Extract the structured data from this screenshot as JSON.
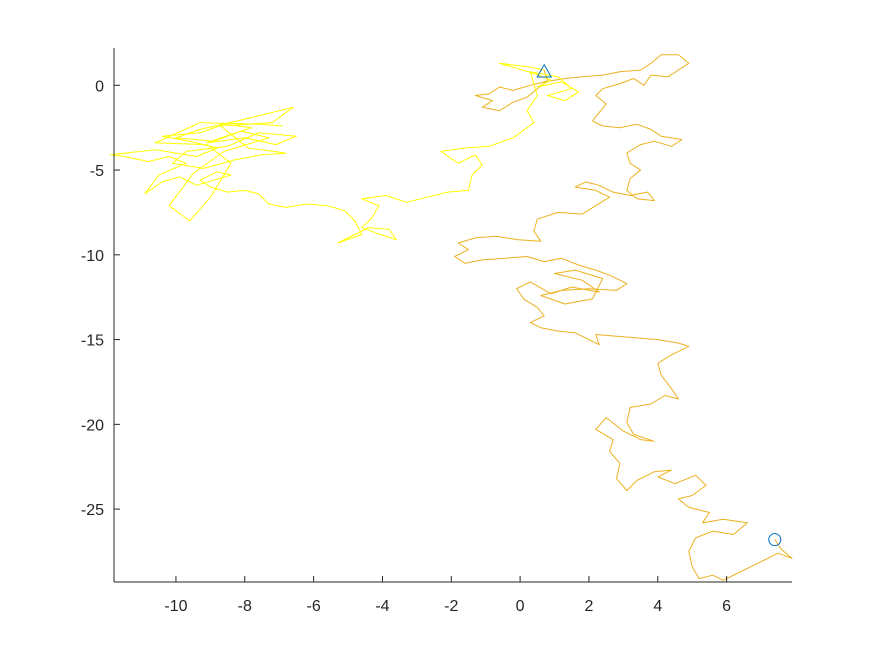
{
  "chart_data": {
    "type": "line",
    "title": "",
    "xlabel": "",
    "ylabel": "",
    "xlim": [
      -11.8,
      7.9
    ],
    "ylim": [
      -29.3,
      2.2
    ],
    "xticks": [
      -10,
      -8,
      -6,
      -4,
      -2,
      0,
      2,
      4,
      6
    ],
    "yticks": [
      -25,
      -20,
      -15,
      -10,
      -5,
      0
    ],
    "xtick_labels": [
      "-10",
      "-8",
      "-6",
      "-4",
      "-2",
      "0",
      "2",
      "4",
      "6"
    ],
    "ytick_labels": [
      "-25",
      "-20",
      "-15",
      "-10",
      "-5",
      "0"
    ],
    "grid": false,
    "box": false,
    "series": [
      {
        "color": "#EDB120",
        "values": [
          [
            7.4,
            -26.8
          ],
          [
            7.6,
            -27.4
          ],
          [
            7.9,
            -27.9
          ],
          [
            7.5,
            -27.6
          ],
          [
            6.9,
            -28.2
          ],
          [
            6.3,
            -28.8
          ],
          [
            5.9,
            -29.2
          ],
          [
            5.6,
            -28.9
          ],
          [
            5.2,
            -29.1
          ],
          [
            5.0,
            -28.4
          ],
          [
            4.9,
            -27.5
          ],
          [
            5.1,
            -26.7
          ],
          [
            5.6,
            -26.3
          ],
          [
            6.2,
            -26.5
          ],
          [
            6.6,
            -25.8
          ],
          [
            5.9,
            -25.6
          ],
          [
            5.3,
            -25.8
          ],
          [
            5.5,
            -25.2
          ],
          [
            4.9,
            -24.9
          ],
          [
            4.6,
            -24.4
          ],
          [
            5.0,
            -24.2
          ],
          [
            5.4,
            -23.6
          ],
          [
            5.1,
            -23.0
          ],
          [
            4.5,
            -23.5
          ],
          [
            4.0,
            -23.1
          ],
          [
            4.4,
            -22.7
          ],
          [
            3.9,
            -22.8
          ],
          [
            3.4,
            -23.3
          ],
          [
            3.1,
            -23.9
          ],
          [
            2.8,
            -23.2
          ],
          [
            2.9,
            -22.3
          ],
          [
            2.6,
            -21.6
          ],
          [
            2.7,
            -20.9
          ],
          [
            2.2,
            -20.3
          ],
          [
            2.5,
            -19.6
          ],
          [
            3.0,
            -20.4
          ],
          [
            3.5,
            -20.9
          ],
          [
            3.9,
            -21.0
          ],
          [
            3.3,
            -20.6
          ],
          [
            3.1,
            -19.9
          ],
          [
            3.2,
            -19.0
          ],
          [
            3.8,
            -18.8
          ],
          [
            4.2,
            -18.3
          ],
          [
            4.6,
            -18.5
          ],
          [
            4.4,
            -17.9
          ],
          [
            4.1,
            -17.1
          ],
          [
            4.0,
            -16.4
          ],
          [
            4.4,
            -15.9
          ],
          [
            4.9,
            -15.4
          ],
          [
            4.6,
            -15.2
          ],
          [
            4.0,
            -15.0
          ],
          [
            3.4,
            -14.9
          ],
          [
            2.8,
            -14.8
          ],
          [
            2.2,
            -14.7
          ],
          [
            2.3,
            -15.3
          ],
          [
            1.9,
            -14.9
          ],
          [
            1.6,
            -14.6
          ],
          [
            1.1,
            -14.5
          ],
          [
            0.6,
            -14.3
          ],
          [
            0.3,
            -14.0
          ],
          [
            0.7,
            -13.6
          ],
          [
            0.5,
            -13.1
          ],
          [
            0.1,
            -12.6
          ],
          [
            -0.1,
            -12.0
          ],
          [
            0.3,
            -11.6
          ],
          [
            0.9,
            -12.3
          ],
          [
            1.5,
            -11.9
          ],
          [
            2.3,
            -12.2
          ],
          [
            1.8,
            -11.5
          ],
          [
            1.0,
            -11.1
          ],
          [
            1.6,
            -10.9
          ],
          [
            2.4,
            -11.4
          ],
          [
            2.1,
            -12.6
          ],
          [
            1.3,
            -12.9
          ],
          [
            0.6,
            -12.4
          ],
          [
            1.2,
            -12.1
          ],
          [
            2.0,
            -12.0
          ],
          [
            2.8,
            -12.1
          ],
          [
            3.1,
            -11.7
          ],
          [
            2.6,
            -11.2
          ],
          [
            2.2,
            -10.9
          ],
          [
            1.7,
            -10.6
          ],
          [
            1.2,
            -10.2
          ],
          [
            0.7,
            -10.4
          ],
          [
            0.2,
            -10.1
          ],
          [
            -0.4,
            -10.2
          ],
          [
            -1.1,
            -10.3
          ],
          [
            -1.6,
            -10.5
          ],
          [
            -1.9,
            -10.1
          ],
          [
            -1.5,
            -9.7
          ],
          [
            -1.8,
            -9.3
          ],
          [
            -1.3,
            -9.0
          ],
          [
            -0.7,
            -8.9
          ],
          [
            -0.1,
            -9.1
          ],
          [
            0.6,
            -9.2
          ],
          [
            0.4,
            -8.6
          ],
          [
            0.5,
            -7.9
          ],
          [
            1.1,
            -7.5
          ],
          [
            1.8,
            -7.6
          ],
          [
            2.2,
            -7.1
          ],
          [
            2.6,
            -6.6
          ],
          [
            2.2,
            -6.2
          ],
          [
            1.6,
            -6.0
          ],
          [
            1.9,
            -5.7
          ],
          [
            2.3,
            -5.9
          ],
          [
            2.7,
            -6.3
          ],
          [
            3.2,
            -6.5
          ],
          [
            3.7,
            -6.3
          ],
          [
            3.9,
            -6.8
          ],
          [
            3.4,
            -6.7
          ],
          [
            3.1,
            -6.2
          ],
          [
            3.2,
            -5.5
          ],
          [
            3.5,
            -5.0
          ],
          [
            3.2,
            -4.6
          ],
          [
            3.1,
            -4.0
          ],
          [
            3.5,
            -3.5
          ],
          [
            3.9,
            -3.3
          ],
          [
            4.4,
            -3.6
          ],
          [
            4.7,
            -3.2
          ],
          [
            4.1,
            -3.0
          ],
          [
            3.8,
            -2.6
          ],
          [
            3.4,
            -2.3
          ],
          [
            2.9,
            -2.5
          ],
          [
            2.4,
            -2.4
          ],
          [
            2.1,
            -2.1
          ],
          [
            2.3,
            -1.6
          ],
          [
            2.5,
            -1.1
          ],
          [
            2.2,
            -0.6
          ],
          [
            2.4,
            -0.2
          ],
          [
            2.9,
            0.1
          ],
          [
            3.3,
            0.4
          ],
          [
            3.6,
            0.0
          ],
          [
            3.8,
            0.6
          ],
          [
            4.3,
            0.5
          ],
          [
            4.6,
            0.9
          ],
          [
            4.9,
            1.3
          ],
          [
            4.6,
            1.8
          ],
          [
            4.1,
            1.8
          ],
          [
            3.8,
            1.3
          ],
          [
            3.5,
            0.9
          ],
          [
            2.9,
            0.8
          ],
          [
            2.4,
            0.6
          ],
          [
            1.8,
            0.5
          ],
          [
            1.3,
            0.4
          ],
          [
            0.7,
            0.2
          ],
          [
            0.3,
            0.0
          ],
          [
            -0.2,
            -0.3
          ],
          [
            -0.6,
            -0.1
          ],
          [
            -0.9,
            -0.5
          ],
          [
            -1.3,
            -0.6
          ],
          [
            -0.8,
            -0.9
          ],
          [
            -1.1,
            -1.3
          ],
          [
            -0.6,
            -1.5
          ],
          [
            -0.2,
            -1.0
          ],
          [
            0.2,
            -0.7
          ],
          [
            0.5,
            -0.2
          ],
          [
            0.8,
            0.3
          ],
          [
            0.7,
            0.9
          ]
        ]
      },
      {
        "color": "#FFFF00",
        "values": [
          [
            0.7,
            0.9
          ],
          [
            0.2,
            1.1
          ],
          [
            -0.6,
            1.3
          ],
          [
            -0.1,
            1.0
          ],
          [
            0.4,
            0.7
          ],
          [
            0.9,
            0.3
          ],
          [
            0.5,
            -0.1
          ],
          [
            1.2,
            0.2
          ],
          [
            1.7,
            -0.4
          ],
          [
            1.3,
            -0.9
          ],
          [
            0.8,
            -0.6
          ],
          [
            1.5,
            -0.2
          ],
          [
            1.1,
            0.5
          ],
          [
            0.3,
            0.8
          ],
          [
            0.5,
            -0.6
          ],
          [
            0.2,
            -1.5
          ],
          [
            0.4,
            -2.2
          ],
          [
            -0.2,
            -3.1
          ],
          [
            -0.9,
            -3.6
          ],
          [
            -1.6,
            -3.7
          ],
          [
            -2.3,
            -3.9
          ],
          [
            -1.8,
            -4.6
          ],
          [
            -1.3,
            -4.1
          ],
          [
            -1.1,
            -4.7
          ],
          [
            -1.4,
            -5.3
          ],
          [
            -1.5,
            -6.2
          ],
          [
            -2.1,
            -6.3
          ],
          [
            -2.7,
            -6.6
          ],
          [
            -3.3,
            -6.9
          ],
          [
            -3.9,
            -6.5
          ],
          [
            -4.6,
            -6.7
          ],
          [
            -4.1,
            -7.1
          ],
          [
            -4.3,
            -7.8
          ],
          [
            -4.6,
            -8.4
          ],
          [
            -4.2,
            -8.7
          ],
          [
            -3.6,
            -9.1
          ],
          [
            -3.8,
            -8.5
          ],
          [
            -4.4,
            -8.4
          ],
          [
            -5.3,
            -9.3
          ],
          [
            -4.6,
            -8.8
          ],
          [
            -4.8,
            -8.0
          ],
          [
            -5.1,
            -7.4
          ],
          [
            -5.6,
            -7.1
          ],
          [
            -6.2,
            -7.0
          ],
          [
            -6.8,
            -7.2
          ],
          [
            -7.3,
            -7.0
          ],
          [
            -7.6,
            -6.4
          ],
          [
            -8.0,
            -6.2
          ],
          [
            -8.5,
            -6.3
          ],
          [
            -9.0,
            -6.0
          ],
          [
            -9.3,
            -5.6
          ],
          [
            -8.8,
            -5.1
          ],
          [
            -8.4,
            -5.3
          ],
          [
            -8.9,
            -5.6
          ],
          [
            -9.4,
            -5.9
          ],
          [
            -9.9,
            -5.4
          ],
          [
            -10.4,
            -5.7
          ],
          [
            -10.9,
            -6.4
          ],
          [
            -10.5,
            -5.3
          ],
          [
            -9.7,
            -4.6
          ],
          [
            -10.2,
            -4.2
          ],
          [
            -10.8,
            -4.5
          ],
          [
            -11.5,
            -4.2
          ],
          [
            -11.9,
            -4.1
          ],
          [
            -10.6,
            -3.8
          ],
          [
            -9.4,
            -4.2
          ],
          [
            -8.8,
            -3.7
          ],
          [
            -9.6,
            -3.3
          ],
          [
            -10.4,
            -3.0
          ],
          [
            -9.3,
            -2.8
          ],
          [
            -8.6,
            -2.3
          ],
          [
            -7.8,
            -2.5
          ],
          [
            -8.4,
            -2.9
          ],
          [
            -9.1,
            -3.4
          ],
          [
            -8.0,
            -3.1
          ],
          [
            -7.1,
            -3.5
          ],
          [
            -6.5,
            -3.0
          ],
          [
            -7.6,
            -2.8
          ],
          [
            -8.5,
            -3.6
          ],
          [
            -9.7,
            -3.9
          ],
          [
            -10.1,
            -4.6
          ],
          [
            -9.2,
            -4.9
          ],
          [
            -8.3,
            -4.4
          ],
          [
            -7.5,
            -4.1
          ],
          [
            -6.8,
            -4.0
          ],
          [
            -7.9,
            -3.7
          ],
          [
            -8.7,
            -2.4
          ],
          [
            -7.2,
            -2.2
          ],
          [
            -6.6,
            -1.3
          ],
          [
            -7.4,
            -1.7
          ],
          [
            -8.2,
            -2.1
          ],
          [
            -9.3,
            -2.6
          ],
          [
            -10.0,
            -3.1
          ],
          [
            -8.9,
            -3.3
          ],
          [
            -8.1,
            -2.7
          ],
          [
            -7.3,
            -3.1
          ],
          [
            -8.6,
            -3.9
          ],
          [
            -9.5,
            -5.2
          ],
          [
            -10.2,
            -7.1
          ],
          [
            -9.6,
            -8.0
          ],
          [
            -9.0,
            -6.6
          ],
          [
            -8.4,
            -4.6
          ],
          [
            -9.1,
            -3.5
          ],
          [
            -10.6,
            -3.4
          ],
          [
            -9.3,
            -2.2
          ],
          [
            -7.5,
            -2.3
          ],
          [
            -6.9,
            -2.4
          ]
        ]
      }
    ],
    "markers": [
      {
        "shape": "circle",
        "x": 7.4,
        "y": -26.8,
        "color": "#0072BD"
      },
      {
        "shape": "triangle",
        "x": 0.7,
        "y": 0.8,
        "color": "#0072BD"
      }
    ]
  }
}
